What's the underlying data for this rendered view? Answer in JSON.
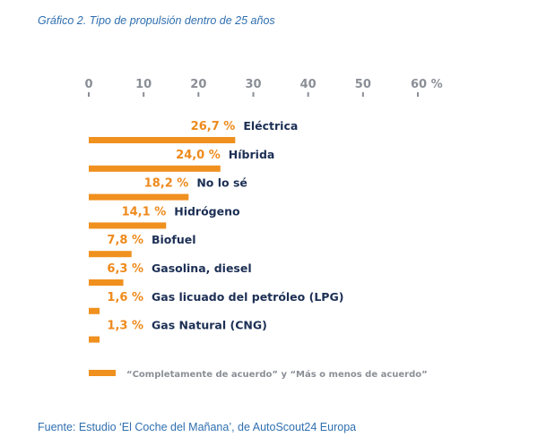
{
  "title": "Gráfico 2. Tipo de propulsión dentro de 25 años",
  "source": "Fuente: Estudio ‘El Coche del Mañana’, de AutoScout24 Europa",
  "colors": {
    "bar": "#f0901e",
    "value": "#ee8a1c",
    "category": "#1c2f54",
    "axis": "#8a8f96",
    "title": "#2f6fb0"
  },
  "chart_data": {
    "type": "bar",
    "orientation": "horizontal",
    "categories": [
      "Eléctrica",
      "Híbrida",
      "No lo sé",
      "Hidrógeno",
      "Biofuel",
      "Gasolina, diesel",
      "Gas licuado del petróleo (LPG)",
      "Gas Natural (CNG)"
    ],
    "values": [
      26.7,
      24.0,
      18.2,
      14.1,
      7.8,
      6.3,
      1.6,
      1.3
    ],
    "value_labels": [
      "26,7 %",
      "24,0 %",
      "18,2 %",
      "14,1 %",
      "7,8 %",
      "6,3 %",
      "1,6 %",
      "1,3 %"
    ],
    "xlim": [
      0,
      60
    ],
    "ticks": [
      0,
      10,
      20,
      30,
      40,
      50,
      60
    ],
    "tick_labels": [
      "0",
      "10",
      "20",
      "30",
      "40",
      "50",
      "60 %"
    ],
    "axis_position": "top",
    "grid": false,
    "legend": {
      "position": "bottom-left",
      "label": "“Completamente de acuerdo” y “Más o menos de acuerdo”"
    }
  }
}
